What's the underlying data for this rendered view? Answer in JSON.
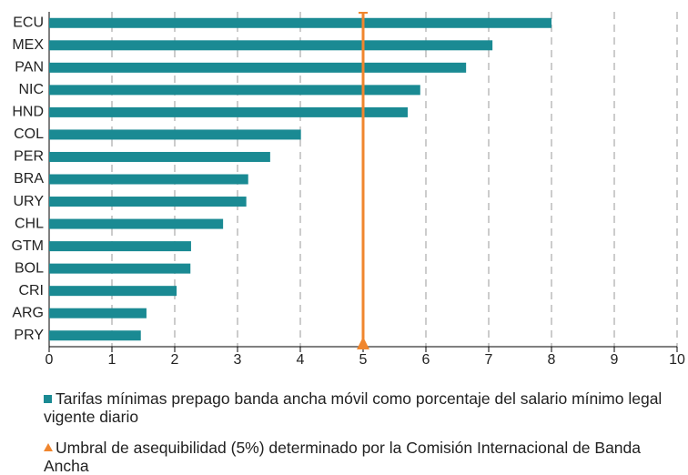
{
  "chart_data": {
    "type": "bar",
    "orientation": "horizontal",
    "categories": [
      "ECU",
      "MEX",
      "PAN",
      "NIC",
      "HND",
      "COL",
      "PER",
      "BRA",
      "URY",
      "CHL",
      "GTM",
      "BOL",
      "CRI",
      "ARG",
      "PRY"
    ],
    "series": [
      {
        "name": "Tarifas mínimas prepago banda ancha móvil como porcentaje del salario mínimo legal vigente diario",
        "color": "#1a8a93",
        "values": [
          8.0,
          7.06,
          6.64,
          5.91,
          5.71,
          4.01,
          3.52,
          3.17,
          3.14,
          2.77,
          2.26,
          2.25,
          2.03,
          1.55,
          1.46
        ]
      }
    ],
    "threshold": {
      "name": "Umbral de asequibilidad (5%) determinado por la Comisión Internacional de Banda Ancha",
      "value": 5,
      "color": "#f0862e"
    },
    "xlim": [
      0,
      10
    ],
    "xticks": [
      0,
      1,
      2,
      3,
      4,
      5,
      6,
      7,
      8,
      9,
      10
    ],
    "grid": true
  }
}
